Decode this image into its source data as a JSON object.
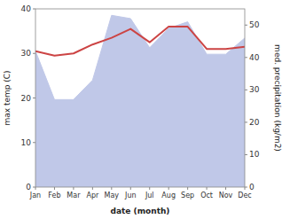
{
  "chart_data": {
    "type": "line",
    "categories": [
      "Jan",
      "Feb",
      "Mar",
      "Apr",
      "May",
      "Jun",
      "Jul",
      "Aug",
      "Sep",
      "Oct",
      "Nov",
      "Dec"
    ],
    "series": [
      {
        "type": "area",
        "axis": "y2",
        "color": "#c0c8e8",
        "values": [
          42,
          27,
          27,
          33,
          53,
          52,
          43,
          49,
          51,
          41,
          41,
          46
        ]
      },
      {
        "type": "line",
        "color": "#cc4444",
        "values": [
          30.5,
          29.5,
          30.0,
          32.0,
          33.5,
          35.5,
          32.5,
          36.0,
          36.0,
          31.0,
          31.0,
          31.5
        ]
      }
    ],
    "xlabel": "date (month)",
    "ylabel": "max temp (C)",
    "y2label": "med. precipitation (kg/m2)",
    "ylim": [
      0,
      40
    ],
    "yticks": [
      0,
      10,
      20,
      30,
      40
    ],
    "y2lim": [
      0,
      55
    ],
    "y2ticks": [
      0,
      10,
      20,
      30,
      40,
      50
    ],
    "grid": false
  }
}
